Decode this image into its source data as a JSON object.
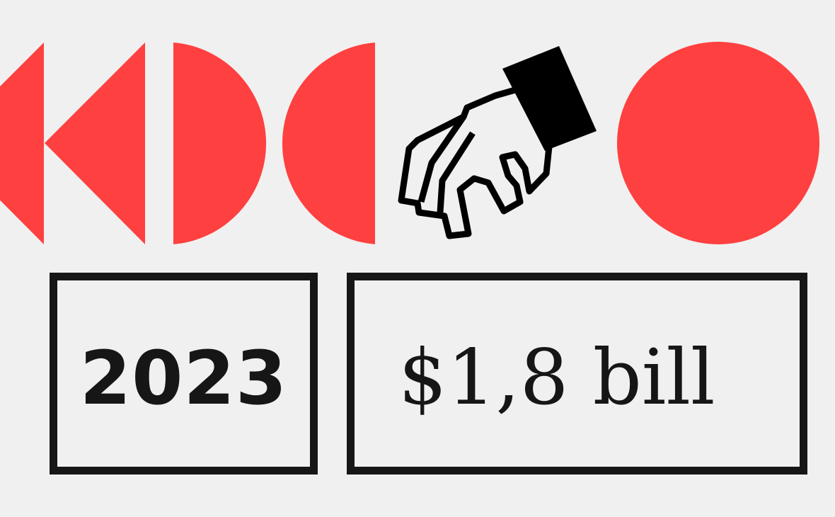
{
  "colors": {
    "background": "#f0f0f0",
    "accent": "#ff4040",
    "ink": "#161616"
  },
  "icons": [
    "triangle-left-shape",
    "triangle-left-shape",
    "half-circle-right-shape",
    "half-circle-left-shape",
    "hand-reaching-icon",
    "circle-shape"
  ],
  "year_box": {
    "value": "2023"
  },
  "amount_box": {
    "value": "$1,8 bill"
  }
}
